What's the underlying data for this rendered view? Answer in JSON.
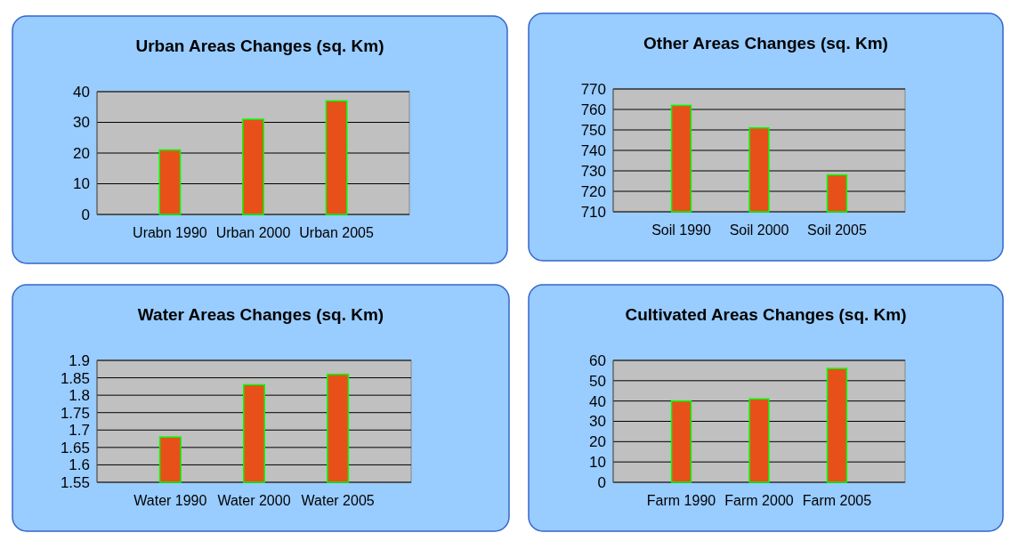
{
  "chart_data": [
    {
      "type": "bar",
      "title": "Urban Areas Changes (sq. Km)",
      "categories": [
        "Urabn 1990",
        "Urban 2000",
        "Urban 2005"
      ],
      "values": [
        21,
        31,
        37
      ],
      "color": "#e8501a",
      "ylim": [
        0,
        40
      ],
      "yticks": [
        0,
        10,
        20,
        30,
        40
      ],
      "grid": "y"
    },
    {
      "type": "bar",
      "title": "Other Areas Changes (sq. Km)",
      "categories": [
        "Soil 1990",
        "Soil 2000",
        "Soil 2005"
      ],
      "values": [
        762,
        751,
        728
      ],
      "color": "#e8501a",
      "ylim": [
        710,
        770
      ],
      "yticks": [
        710,
        720,
        730,
        740,
        750,
        760,
        770
      ],
      "grid": "y"
    },
    {
      "type": "bar",
      "title": "Water Areas Changes (sq. Km)",
      "categories": [
        "Water 1990",
        "Water 2000",
        "Water 2005"
      ],
      "values": [
        1.68,
        1.83,
        1.86
      ],
      "color": "#e8501a",
      "ylim": [
        1.55,
        1.9
      ],
      "yticks": [
        1.55,
        1.6,
        1.65,
        1.7,
        1.75,
        1.8,
        1.85,
        1.9
      ],
      "grid": "y"
    },
    {
      "type": "bar",
      "title": "Cultivated Areas Changes (sq. Km)",
      "categories": [
        "Farm 1990",
        "Farm 2000",
        "Farm 2005"
      ],
      "values": [
        40,
        41,
        56
      ],
      "color": "#e8501a",
      "ylim": [
        0,
        60
      ],
      "yticks": [
        0,
        10,
        20,
        30,
        40,
        50,
        60
      ],
      "grid": "y"
    }
  ]
}
